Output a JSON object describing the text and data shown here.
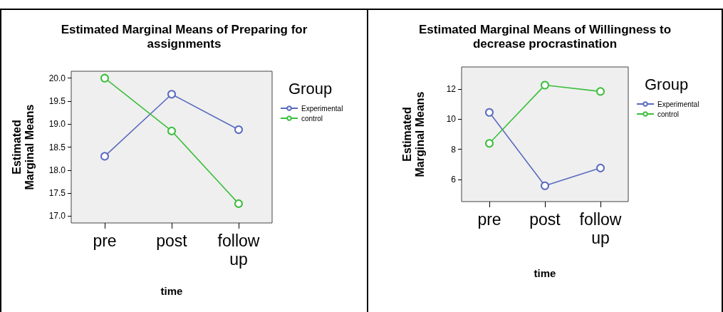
{
  "chart_data": [
    {
      "type": "line",
      "title": "Estimated Marginal Means of Preparing for assignments",
      "xlabel": "time",
      "ylabel": "Estimated Marginal Means",
      "legend_title": "Group",
      "categories": [
        "pre",
        "post",
        "follow up"
      ],
      "series": [
        {
          "name": "Experimental",
          "color": "#5a6bbf",
          "values": [
            18.3,
            19.65,
            18.88
          ]
        },
        {
          "name": "control",
          "color": "#3cbf3c",
          "values": [
            20.0,
            18.85,
            17.27
          ]
        }
      ],
      "ylim": [
        16.85,
        20.15
      ],
      "yticks": [
        {
          "value": 17,
          "label": "17.0"
        },
        {
          "value": 17.5,
          "label": "17.5"
        },
        {
          "value": 18,
          "label": "18.0"
        },
        {
          "value": 18.5,
          "label": "18.5"
        },
        {
          "value": 19,
          "label": "19.0"
        },
        {
          "value": 19.5,
          "label": "19.5"
        },
        {
          "value": 20,
          "label": "20.0"
        }
      ],
      "grid": false,
      "legend": "right",
      "marker": "circle",
      "line_style": "solid"
    },
    {
      "type": "line",
      "title": "Estimated Marginal Means of Willingness to decrease procrastination",
      "xlabel": "time",
      "ylabel": "Estimated Marginal Means",
      "legend_title": "Group",
      "categories": [
        "pre",
        "post",
        "follow up"
      ],
      "series": [
        {
          "name": "Experimental",
          "color": "#5a6bbf",
          "values": [
            10.45,
            5.6,
            6.77
          ]
        },
        {
          "name": "control",
          "color": "#3cbf3c",
          "values": [
            8.4,
            12.25,
            11.83
          ]
        }
      ],
      "ylim": [
        4.55,
        13.45
      ],
      "yticks": [
        6,
        8,
        10,
        12
      ],
      "grid": false,
      "legend": "right",
      "marker": "circle",
      "line_style": "solid"
    }
  ]
}
